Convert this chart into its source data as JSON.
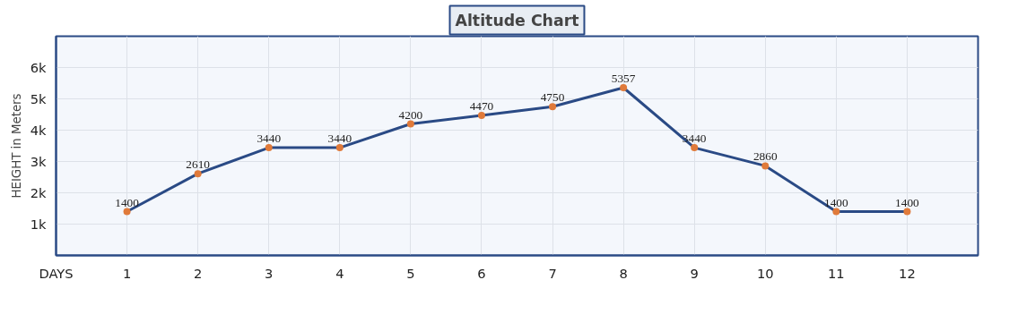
{
  "chart_data": {
    "type": "line",
    "title": "Altitude Chart",
    "ylabel": "HEIGHT in Meters",
    "x": [
      1,
      2,
      3,
      4,
      5,
      6,
      7,
      8,
      9,
      10,
      11,
      12
    ],
    "series": [
      {
        "color": "#2a4a85",
        "colors": [
          "#e07a3a",
          "#e07a3a",
          "#e07a3a",
          "#e07a3a",
          "#e07a3a",
          "#e07a3a",
          "#e07a3a",
          "#e07a3a",
          "#e07a3a",
          "#e07a3a",
          "#e07a3a",
          "#e07a3a"
        ],
        "values": [
          1400,
          2610,
          3440,
          3440,
          4200,
          4470,
          4750,
          5357,
          3440,
          2860,
          1400,
          1400
        ]
      }
    ],
    "xlim": [
      0,
      13
    ],
    "xticks": [
      {
        "value": 0,
        "label": "DAYS"
      },
      1,
      2,
      3,
      4,
      5,
      6,
      7,
      8,
      9,
      10,
      11,
      12
    ],
    "ylim": [
      0,
      7000
    ],
    "yticks": [
      {
        "value": 1000,
        "label": "1k"
      },
      {
        "value": 2000,
        "label": "2k"
      },
      {
        "value": 3000,
        "label": "3k"
      },
      {
        "value": 4000,
        "label": "4k"
      },
      {
        "value": 5000,
        "label": "5k"
      },
      {
        "value": 6000,
        "label": "6k"
      }
    ],
    "grid": true,
    "marker": "circle",
    "line_style": "solid",
    "data_labels": true
  }
}
